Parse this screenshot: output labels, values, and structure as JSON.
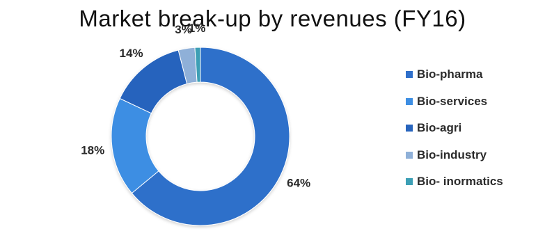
{
  "chart_data": {
    "type": "pie",
    "variant": "donut",
    "title": "Market break-up by revenues (FY16)",
    "categories": [
      "Bio-pharma",
      "Bio-services",
      "Bio-agri",
      "Bio-industry",
      "Bio- inormatics"
    ],
    "values": [
      64,
      18,
      14,
      3,
      1
    ],
    "labels": [
      "64%",
      "18%",
      "14%",
      "3%",
      "1%"
    ],
    "colors": [
      "#2f6fca",
      "#3d8ee3",
      "#2764bd",
      "#8fb0d8",
      "#3c9fb5"
    ],
    "legend": "right"
  }
}
